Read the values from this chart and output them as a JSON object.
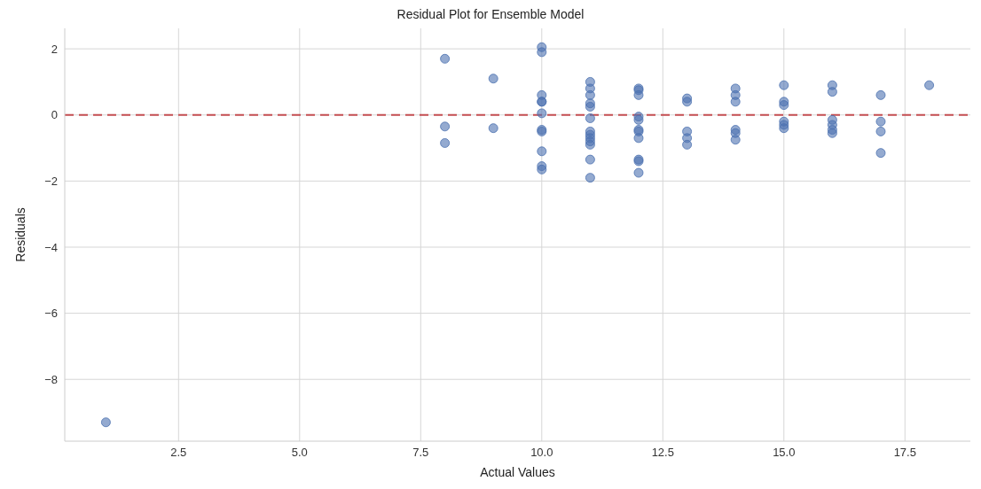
{
  "chart_data": {
    "type": "scatter",
    "title": "Residual Plot for Ensemble Model",
    "xlabel": "Actual Values",
    "ylabel": "Residuals",
    "x": [
      1,
      8,
      8,
      8,
      9,
      9,
      10,
      10,
      10,
      10,
      10,
      10,
      10,
      10,
      10,
      10,
      10,
      11,
      11,
      11,
      11,
      11,
      11,
      11,
      11,
      11,
      11,
      11,
      11,
      11,
      12,
      12,
      12,
      12,
      12,
      12,
      12,
      12,
      12,
      12,
      12,
      13,
      13,
      13,
      13,
      13,
      14,
      14,
      14,
      14,
      14,
      14,
      15,
      15,
      15,
      15,
      15,
      15,
      16,
      16,
      16,
      16,
      16,
      16,
      17,
      17,
      17,
      17,
      18
    ],
    "values": [
      -9.3,
      1.7,
      -0.35,
      -0.85,
      1.1,
      -0.4,
      2.05,
      1.9,
      0.6,
      0.4,
      0.4,
      0.05,
      -0.45,
      -0.5,
      -1.1,
      -1.55,
      -1.65,
      1.0,
      0.8,
      0.6,
      0.35,
      0.25,
      -0.1,
      -0.5,
      -0.6,
      -0.7,
      -0.8,
      -0.9,
      -1.35,
      -1.9,
      0.8,
      0.75,
      0.6,
      -0.05,
      -0.15,
      -0.45,
      -0.5,
      -0.7,
      -1.35,
      -1.4,
      -1.75,
      0.5,
      0.4,
      -0.5,
      -0.7,
      -0.9,
      0.8,
      0.6,
      0.4,
      -0.45,
      -0.55,
      -0.75,
      0.9,
      0.4,
      0.3,
      -0.2,
      -0.3,
      -0.4,
      0.9,
      0.7,
      -0.15,
      -0.3,
      -0.45,
      -0.55,
      0.6,
      -0.2,
      -0.5,
      -1.15,
      0.9
    ],
    "color": "#4c72b0",
    "marker": "circle",
    "grid": true,
    "xlim": [
      0.15,
      18.85
    ],
    "xticks": [
      {
        "value": 2.5,
        "label": "2.5"
      },
      {
        "value": 5,
        "label": "5.0"
      },
      {
        "value": 7.5,
        "label": "7.5"
      },
      {
        "value": 10,
        "label": "10.0"
      },
      {
        "value": 12.5,
        "label": "12.5"
      },
      {
        "value": 15,
        "label": "15.0"
      },
      {
        "value": 17.5,
        "label": "17.5"
      }
    ],
    "ylim": [
      -9.87,
      2.62
    ],
    "yticks": [
      {
        "value": -8,
        "label": "−8"
      },
      {
        "value": -6,
        "label": "−6"
      },
      {
        "value": -4,
        "label": "−4"
      },
      {
        "value": -2,
        "label": "−2"
      },
      {
        "value": 0,
        "label": "0"
      },
      {
        "value": 2,
        "label": "2"
      }
    ],
    "ref_lines": [
      {
        "axis": "y",
        "value": 0,
        "color": "#c44e52",
        "line_style": "dashed"
      }
    ]
  }
}
